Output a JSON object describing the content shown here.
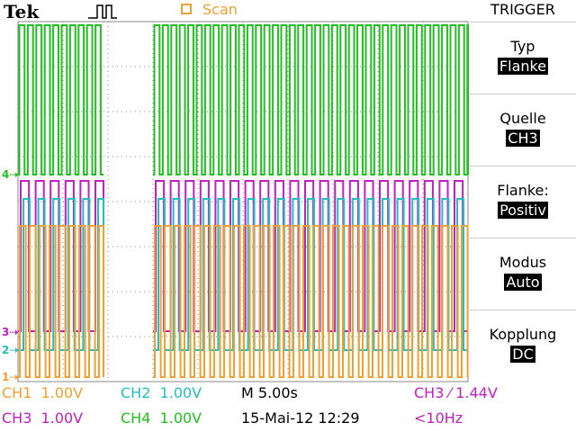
{
  "brand": "Tek",
  "acquisition": {
    "label": "Scan"
  },
  "menu": {
    "title": "TRIGGER",
    "options": [
      {
        "label": "Typ",
        "value": "Flanke"
      },
      {
        "label": "Quelle",
        "value": "CH3"
      },
      {
        "label": "Flanke:",
        "value": "Positiv"
      },
      {
        "label": "Modus",
        "value": "Auto"
      },
      {
        "label": "Kopplung",
        "value": "DC"
      }
    ]
  },
  "status": {
    "ch1": "CH1  1.00V",
    "ch2": "CH2  1.00V",
    "ch3": "CH3  1.00V",
    "ch4": "CH4  1.00V",
    "timebase": "M 5.00s",
    "datetime": "15-Mai-12 12:29",
    "trigger": "CH3 ⁄ 1.44V",
    "frequency": "<10Hz"
  },
  "markers": {
    "ch1": "1",
    "ch2": "2",
    "ch3": "3",
    "ch4": "4"
  },
  "colors": {
    "ch1": "#f0a030",
    "ch2": "#20c0c0",
    "ch3": "#c020c0",
    "ch4": "#20c020",
    "grid": "#888888"
  },
  "chart_data": {
    "type": "line",
    "grid": true,
    "series": [
      {
        "channel": "CH4",
        "pattern": "square",
        "gap_divisions": [
          1.9,
          3.0
        ]
      },
      {
        "channel": "CH3",
        "pattern": "square",
        "gap_divisions": [
          1.9,
          3.0
        ]
      },
      {
        "channel": "CH2",
        "pattern": "square",
        "gap_divisions": [
          1.9,
          3.0
        ]
      },
      {
        "channel": "CH1",
        "pattern": "square",
        "gap_divisions": [
          1.9,
          3.0
        ]
      }
    ]
  }
}
